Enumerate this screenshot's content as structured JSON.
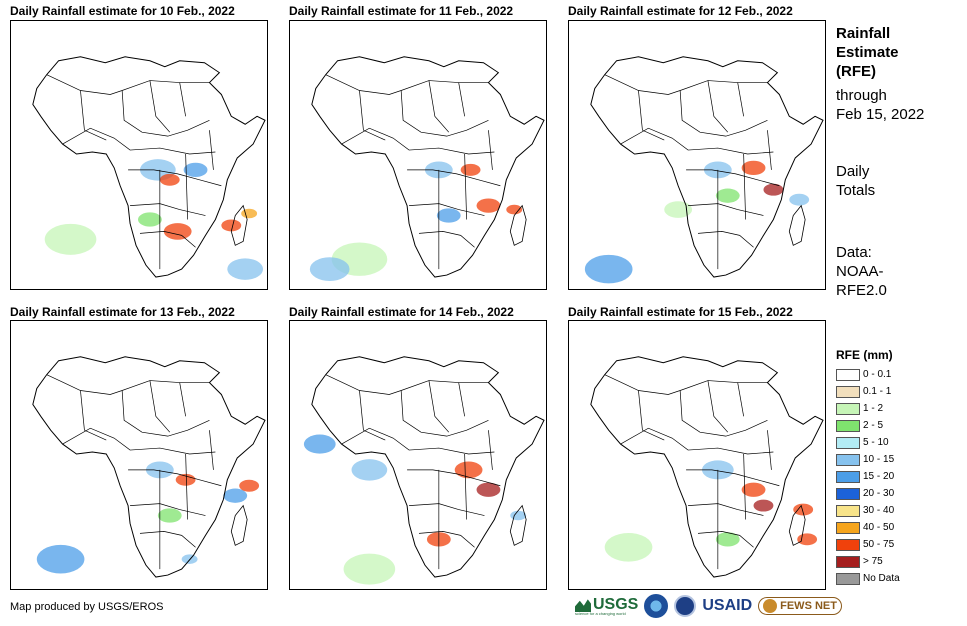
{
  "panels": [
    {
      "title": "Daily Rainfall estimate for 10 Feb., 2022"
    },
    {
      "title": "Daily Rainfall estimate for 11 Feb., 2022"
    },
    {
      "title": "Daily Rainfall estimate for 12 Feb., 2022"
    },
    {
      "title": "Daily Rainfall estimate for 13 Feb., 2022"
    },
    {
      "title": "Daily Rainfall estimate for 14 Feb., 2022"
    },
    {
      "title": "Daily Rainfall estimate for 15 Feb., 2022"
    }
  ],
  "side": {
    "title_line1": "Rainfall",
    "title_line2": "Estimate",
    "title_line3": "(RFE)",
    "through": "through",
    "date": "Feb 15, 2022",
    "totals_line1": "Daily",
    "totals_line2": "Totals",
    "data_line1": "Data:",
    "data_line2": "NOAA-",
    "data_line3": "RFE2.0"
  },
  "legend": {
    "title": "RFE (mm)",
    "items": [
      {
        "label": "0 - 0.1",
        "color": "#ffffff"
      },
      {
        "label": "0.1 - 1",
        "color": "#f2dfbd"
      },
      {
        "label": "1 - 2",
        "color": "#c6f5b7"
      },
      {
        "label": "2 - 5",
        "color": "#7fe36e"
      },
      {
        "label": "5 - 10",
        "color": "#b3ecf5"
      },
      {
        "label": "10 - 15",
        "color": "#86c2ee"
      },
      {
        "label": "15 - 20",
        "color": "#4c9ee8"
      },
      {
        "label": "20 - 30",
        "color": "#1c62d9"
      },
      {
        "label": "30 - 40",
        "color": "#f8e48a"
      },
      {
        "label": "40 - 50",
        "color": "#f6a51d"
      },
      {
        "label": "50 - 75",
        "color": "#f0410c"
      },
      {
        "label": "> 75",
        "color": "#a51e1e"
      },
      {
        "label": "No Data",
        "color": "#999999"
      }
    ]
  },
  "footer": {
    "credit": "Map produced by USGS/EROS"
  },
  "logos": {
    "usgs": "USGS",
    "usgs_tagline": "science for a changing world",
    "noaa": "NOAA",
    "usaid": "USAID",
    "fews": "FEWS NET"
  }
}
